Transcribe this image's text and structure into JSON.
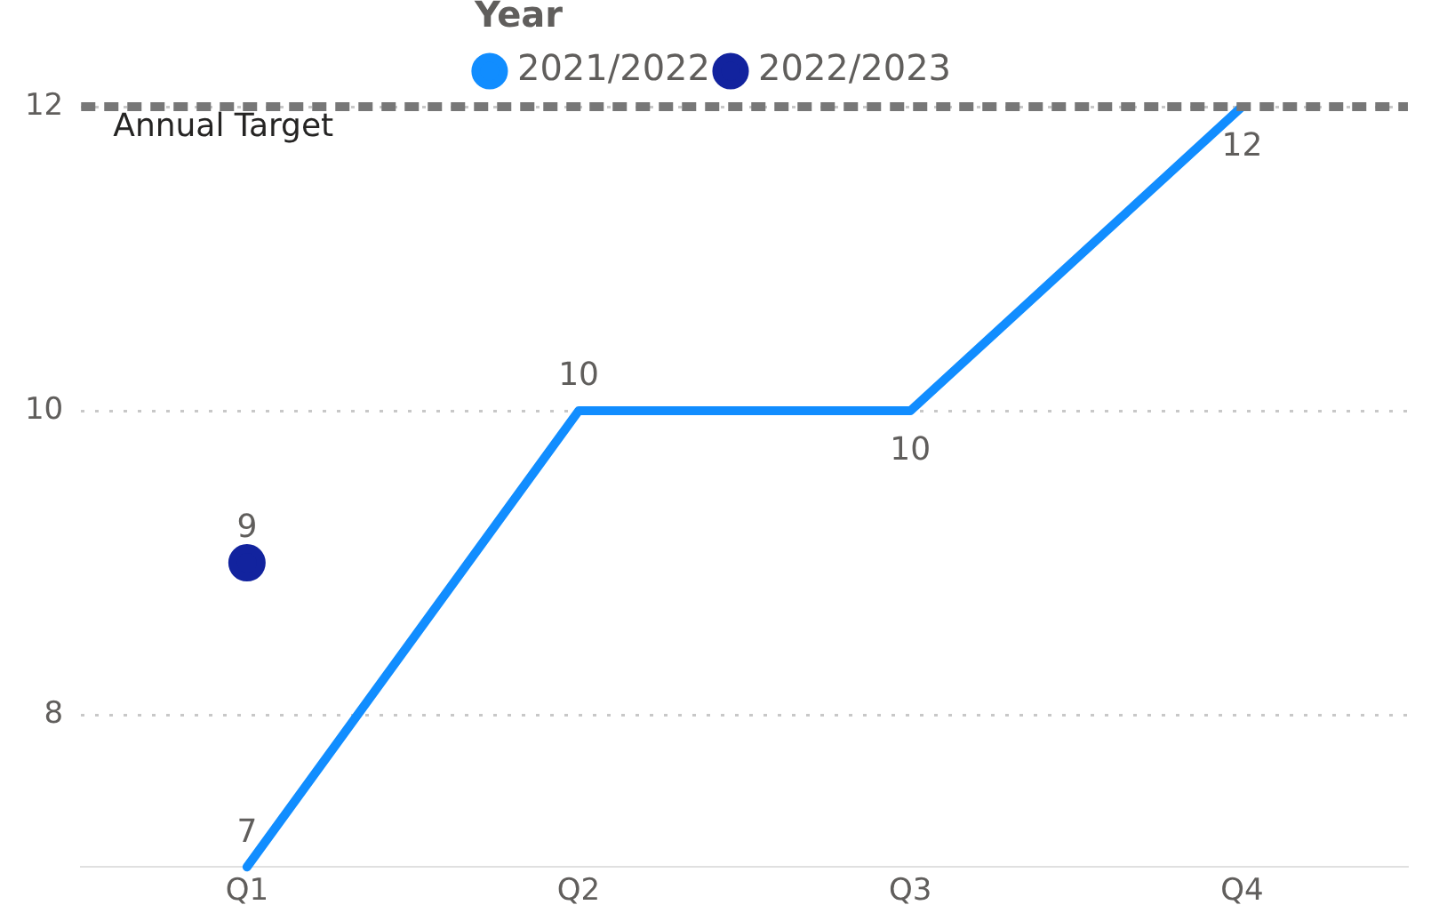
{
  "chart_data": {
    "type": "line",
    "legend_title": "Year",
    "legend": "top",
    "categories": [
      "Q1",
      "Q2",
      "Q3",
      "Q4"
    ],
    "series": [
      {
        "name": "2021/2022",
        "color": "#118dff",
        "values": [
          7,
          10,
          10,
          12
        ],
        "marker": "none"
      },
      {
        "name": "2022/2023",
        "color": "#12239e",
        "values": [
          9,
          null,
          null,
          null
        ],
        "marker": "circle"
      }
    ],
    "ylim": [
      7,
      12
    ],
    "yticks": [
      8,
      10,
      12
    ],
    "grid": "y",
    "line_style": "solid",
    "data_labels": true,
    "ref_lines": [
      {
        "axis": "y",
        "value": 12,
        "label": "Annual Target",
        "color": "#777777",
        "line_style": "dashed"
      }
    ]
  }
}
